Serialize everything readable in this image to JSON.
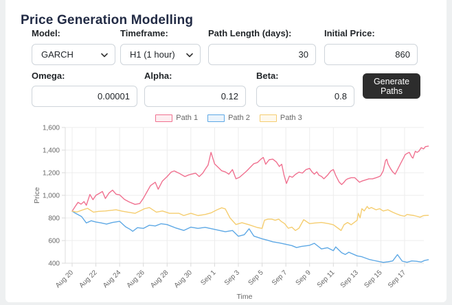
{
  "title": "Price Generation Modelling",
  "form": {
    "model": {
      "label": "Model:",
      "value": "GARCH"
    },
    "timeframe": {
      "label": "Timeframe:",
      "value": "H1 (1 hour)"
    },
    "path_length": {
      "label": "Path Length (days):",
      "value": "30"
    },
    "initial_price": {
      "label": "Initial Price:",
      "value": "860"
    },
    "omega": {
      "label": "Omega:",
      "value": "0.00001"
    },
    "alpha": {
      "label": "Alpha:",
      "value": "0.12"
    },
    "beta": {
      "label": "Beta:",
      "value": "0.8"
    },
    "generate_button_label": "Generate Paths"
  },
  "chart_data": {
    "type": "line",
    "title": "",
    "xlabel": "Time",
    "ylabel": "Price",
    "x_unit": "days since Aug 20",
    "xlim": [
      0,
      30
    ],
    "ylim": [
      400,
      1600
    ],
    "grid": true,
    "legend_position": "top",
    "x_tick_days": [
      0,
      2,
      4,
      6,
      8,
      10,
      12,
      14,
      16,
      18,
      20,
      22,
      24,
      26,
      28
    ],
    "x_tick_labels": [
      "Aug 20",
      "Aug 22",
      "Aug 24",
      "Aug 26",
      "Aug 28",
      "Aug 30",
      "Sep 1",
      "Sep 3",
      "Sep 5",
      "Sep 7",
      "Sep 9",
      "Sep 11",
      "Sep 13",
      "Sep 15",
      "Sep 17"
    ],
    "y_tick_values": [
      400,
      600,
      800,
      1000,
      1200,
      1400,
      1600
    ],
    "y_tick_labels": [
      "400",
      "600",
      "800",
      "1,000",
      "1,200",
      "1,400",
      "1,600"
    ],
    "series": [
      {
        "name": "Path 1",
        "color": "#f0708f",
        "points": [
          [
            0,
            860
          ],
          [
            0.25,
            900
          ],
          [
            0.5,
            938
          ],
          [
            0.75,
            922
          ],
          [
            1,
            945
          ],
          [
            1.2,
            912
          ],
          [
            1.5,
            1008
          ],
          [
            1.75,
            962
          ],
          [
            2,
            1000
          ],
          [
            2.3,
            1018
          ],
          [
            2.55,
            1034
          ],
          [
            2.8,
            972
          ],
          [
            3.1,
            1020
          ],
          [
            3.4,
            1046
          ],
          [
            3.7,
            1010
          ],
          [
            4,
            1004
          ],
          [
            4.4,
            964
          ],
          [
            4.8,
            942
          ],
          [
            5.3,
            920
          ],
          [
            5.7,
            928
          ],
          [
            6,
            974
          ],
          [
            6.3,
            1030
          ],
          [
            6.6,
            1086
          ],
          [
            7,
            1116
          ],
          [
            7.25,
            1054
          ],
          [
            7.6,
            1126
          ],
          [
            8,
            1166
          ],
          [
            8.35,
            1206
          ],
          [
            8.6,
            1216
          ],
          [
            9,
            1196
          ],
          [
            9.5,
            1166
          ],
          [
            9.8,
            1180
          ],
          [
            10,
            1186
          ],
          [
            10.4,
            1196
          ],
          [
            10.7,
            1166
          ],
          [
            11,
            1196
          ],
          [
            11.2,
            1230
          ],
          [
            11.45,
            1268
          ],
          [
            11.7,
            1380
          ],
          [
            12,
            1278
          ],
          [
            12.3,
            1248
          ],
          [
            12.6,
            1217
          ],
          [
            12.9,
            1207
          ],
          [
            13.2,
            1187
          ],
          [
            13.5,
            1228
          ],
          [
            13.8,
            1146
          ],
          [
            14.1,
            1160
          ],
          [
            14.4,
            1187
          ],
          [
            14.7,
            1215
          ],
          [
            15,
            1248
          ],
          [
            15.3,
            1280
          ],
          [
            15.6,
            1290
          ],
          [
            15.9,
            1320
          ],
          [
            16.1,
            1335
          ],
          [
            16.3,
            1275
          ],
          [
            16.6,
            1315
          ],
          [
            16.9,
            1320
          ],
          [
            17.2,
            1295
          ],
          [
            17.45,
            1255
          ],
          [
            17.65,
            1275
          ],
          [
            17.85,
            1175
          ],
          [
            18.05,
            1105
          ],
          [
            18.3,
            1170
          ],
          [
            18.55,
            1160
          ],
          [
            18.8,
            1185
          ],
          [
            19.1,
            1205
          ],
          [
            19.4,
            1197
          ],
          [
            19.7,
            1228
          ],
          [
            20,
            1238
          ],
          [
            20.2,
            1207
          ],
          [
            20.4,
            1187
          ],
          [
            20.6,
            1207
          ],
          [
            20.8,
            1177
          ],
          [
            21,
            1167
          ],
          [
            21.2,
            1146
          ],
          [
            21.5,
            1177
          ],
          [
            21.8,
            1217
          ],
          [
            22,
            1228
          ],
          [
            22.2,
            1177
          ],
          [
            22.35,
            1146
          ],
          [
            22.5,
            1116
          ],
          [
            22.7,
            1095
          ],
          [
            22.9,
            1116
          ],
          [
            23.05,
            1136
          ],
          [
            23.2,
            1146
          ],
          [
            23.5,
            1156
          ],
          [
            23.8,
            1156
          ],
          [
            24,
            1136
          ],
          [
            24.2,
            1116
          ],
          [
            24.4,
            1126
          ],
          [
            24.7,
            1136
          ],
          [
            25,
            1146
          ],
          [
            25.3,
            1146
          ],
          [
            25.6,
            1156
          ],
          [
            25.9,
            1167
          ],
          [
            26,
            1177
          ],
          [
            26.2,
            1217
          ],
          [
            26.4,
            1309
          ],
          [
            26.5,
            1319
          ],
          [
            26.6,
            1278
          ],
          [
            26.8,
            1238
          ],
          [
            27,
            1207
          ],
          [
            27.2,
            1187
          ],
          [
            27.35,
            1217
          ],
          [
            27.5,
            1248
          ],
          [
            27.7,
            1289
          ],
          [
            27.9,
            1329
          ],
          [
            28.05,
            1360
          ],
          [
            28.2,
            1370
          ],
          [
            28.4,
            1380
          ],
          [
            28.6,
            1339
          ],
          [
            28.7,
            1329
          ],
          [
            28.9,
            1390
          ],
          [
            29.05,
            1380
          ],
          [
            29.2,
            1390
          ],
          [
            29.4,
            1421
          ],
          [
            29.6,
            1411
          ],
          [
            29.75,
            1431
          ],
          [
            30,
            1435
          ]
        ]
      },
      {
        "name": "Path 2",
        "color": "#5da8e5",
        "points": [
          [
            0,
            860
          ],
          [
            0.2,
            846
          ],
          [
            0.5,
            830
          ],
          [
            0.8,
            812
          ],
          [
            1.2,
            756
          ],
          [
            1.6,
            775
          ],
          [
            2,
            764
          ],
          [
            2.4,
            757
          ],
          [
            2.9,
            746
          ],
          [
            3.4,
            760
          ],
          [
            4,
            770
          ],
          [
            4.5,
            722
          ],
          [
            4.9,
            698
          ],
          [
            5.1,
            682
          ],
          [
            5.5,
            714
          ],
          [
            6,
            708
          ],
          [
            6.5,
            736
          ],
          [
            7,
            729
          ],
          [
            7.5,
            749
          ],
          [
            8,
            741
          ],
          [
            8.7,
            713
          ],
          [
            9.4,
            690
          ],
          [
            10,
            719
          ],
          [
            10.6,
            708
          ],
          [
            11.2,
            717
          ],
          [
            11.9,
            701
          ],
          [
            12.5,
            687
          ],
          [
            12.9,
            678
          ],
          [
            13.5,
            689
          ],
          [
            14,
            638
          ],
          [
            14.5,
            652
          ],
          [
            14.9,
            704
          ],
          [
            15.3,
            640
          ],
          [
            16,
            616
          ],
          [
            16.5,
            602
          ],
          [
            16.9,
            589
          ],
          [
            17.5,
            578
          ],
          [
            18,
            567
          ],
          [
            18.5,
            556
          ],
          [
            18.9,
            538
          ],
          [
            19.3,
            548
          ],
          [
            20,
            558
          ],
          [
            20.4,
            576
          ],
          [
            21,
            526
          ],
          [
            21.5,
            537
          ],
          [
            22,
            511
          ],
          [
            22.2,
            544
          ],
          [
            22.7,
            492
          ],
          [
            23,
            477
          ],
          [
            23.3,
            497
          ],
          [
            24,
            465
          ],
          [
            24.4,
            457
          ],
          [
            25,
            434
          ],
          [
            25.4,
            424
          ],
          [
            26.2,
            407
          ],
          [
            26.6,
            412
          ],
          [
            27,
            420
          ],
          [
            27.4,
            476
          ],
          [
            27.8,
            418
          ],
          [
            28.2,
            408
          ],
          [
            28.6,
            420
          ],
          [
            29,
            417
          ],
          [
            29.4,
            410
          ],
          [
            29.7,
            425
          ],
          [
            30,
            431
          ]
        ]
      },
      {
        "name": "Path 3",
        "color": "#f5cd6f",
        "points": [
          [
            0,
            860
          ],
          [
            0.4,
            852
          ],
          [
            0.8,
            868
          ],
          [
            1,
            875
          ],
          [
            1.3,
            885
          ],
          [
            1.8,
            851
          ],
          [
            2.2,
            858
          ],
          [
            2.8,
            862
          ],
          [
            3.7,
            872
          ],
          [
            4.2,
            860
          ],
          [
            4.7,
            851
          ],
          [
            5.3,
            841
          ],
          [
            6.1,
            882
          ],
          [
            6.5,
            892
          ],
          [
            7.1,
            851
          ],
          [
            7.6,
            862
          ],
          [
            8.2,
            841
          ],
          [
            9,
            841
          ],
          [
            9.4,
            821
          ],
          [
            10,
            841
          ],
          [
            10.6,
            821
          ],
          [
            11.2,
            831
          ],
          [
            11.7,
            845
          ],
          [
            12.2,
            872
          ],
          [
            12.6,
            890
          ],
          [
            12.9,
            880
          ],
          [
            13.3,
            800
          ],
          [
            13.8,
            742
          ],
          [
            14.3,
            758
          ],
          [
            14.9,
            740
          ],
          [
            15.6,
            715
          ],
          [
            16,
            708
          ],
          [
            16.2,
            780
          ],
          [
            16.5,
            790
          ],
          [
            16.8,
            790
          ],
          [
            17.1,
            780
          ],
          [
            17.4,
            790
          ],
          [
            17.6,
            770
          ],
          [
            17.9,
            750
          ],
          [
            18.2,
            709
          ],
          [
            18.5,
            719
          ],
          [
            18.8,
            689
          ],
          [
            19.1,
            709
          ],
          [
            19.5,
            785
          ],
          [
            20,
            750
          ],
          [
            20.4,
            755
          ],
          [
            21,
            760
          ],
          [
            21.6,
            750
          ],
          [
            22,
            740
          ],
          [
            22.4,
            709
          ],
          [
            22.65,
            689
          ],
          [
            22.9,
            740
          ],
          [
            23.2,
            760
          ],
          [
            23.5,
            740
          ],
          [
            24,
            780
          ],
          [
            24.1,
            841
          ],
          [
            24.25,
            801
          ],
          [
            24.4,
            882
          ],
          [
            24.6,
            862
          ],
          [
            24.85,
            902
          ],
          [
            25,
            882
          ],
          [
            25.2,
            892
          ],
          [
            25.6,
            872
          ],
          [
            25.9,
            882
          ],
          [
            26.2,
            862
          ],
          [
            26.6,
            872
          ],
          [
            27,
            851
          ],
          [
            27.3,
            837
          ],
          [
            27.65,
            823
          ],
          [
            28,
            815
          ],
          [
            28.2,
            831
          ],
          [
            28.8,
            821
          ],
          [
            29.3,
            807
          ],
          [
            29.6,
            821
          ],
          [
            30,
            823
          ]
        ]
      }
    ]
  }
}
